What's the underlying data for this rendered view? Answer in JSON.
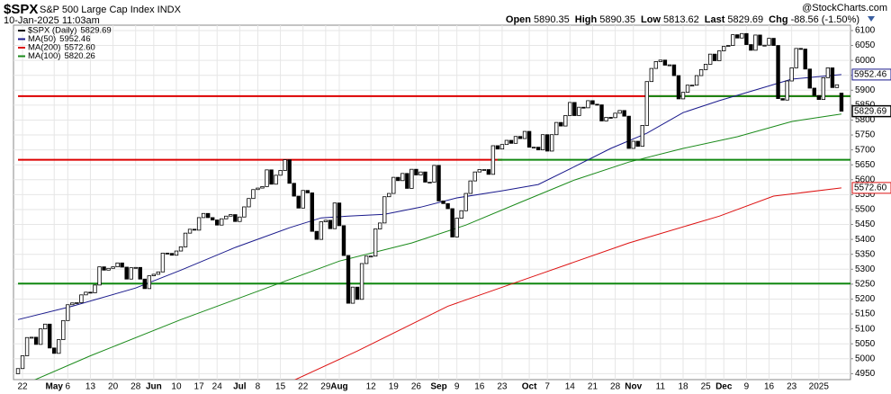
{
  "chart_data": {
    "type": "candlestick",
    "title": "$SPX",
    "subtitle": "S&P 500 Large Cap Index INDX",
    "date": "10-Jan-2025 11:03am",
    "credit": "@StockCharts.com",
    "quote": [
      {
        "label": "Open",
        "value": "5890.35"
      },
      {
        "label": "High",
        "value": "5890.35"
      },
      {
        "label": "Low",
        "value": "5813.62"
      },
      {
        "label": "Last",
        "value": "5829.69"
      },
      {
        "label": "Chg",
        "value": "-88.56 (-1.50%)"
      }
    ],
    "price": {
      "name": "$SPX (Daily)",
      "value_label": "5829.69",
      "color": "#000000",
      "open": [
        4950,
        4967,
        5010,
        5071,
        5072,
        5048,
        5100,
        5116,
        5036,
        5018,
        5064,
        5128,
        5181,
        5187,
        5188,
        5214,
        5223,
        5221,
        5247,
        5308,
        5297,
        5303,
        5308,
        5321,
        5307,
        5267,
        5305,
        5306,
        5267,
        5235,
        5278,
        5283,
        5291,
        5354,
        5353,
        5347,
        5361,
        5375,
        5421,
        5434,
        5431,
        5473,
        5487,
        5473,
        5465,
        5448,
        5469,
        5478,
        5483,
        5460,
        5475,
        5509,
        5537,
        5567,
        5572,
        5577,
        5633,
        5585,
        5615,
        5631,
        5667,
        5588,
        5545,
        5505,
        5564,
        5556,
        5427,
        5400,
        5459,
        5464,
        5436,
        5522,
        5446,
        5346,
        5186,
        5240,
        5199,
        5319,
        5344,
        5344,
        5435,
        5455,
        5543,
        5554,
        5608,
        5597,
        5621,
        5571,
        5635,
        5616,
        5626,
        5592,
        5592,
        5648,
        5529,
        5520,
        5503,
        5408,
        5471,
        5496,
        5554,
        5596,
        5626,
        5634,
        5634,
        5618,
        5714,
        5703,
        5718,
        5732,
        5722,
        5745,
        5738,
        5762,
        5709,
        5709,
        5700,
        5751,
        5696,
        5751,
        5792,
        5780,
        5815,
        5859,
        5815,
        5843,
        5841,
        5865,
        5853,
        5851,
        5797,
        5809,
        5808,
        5823,
        5832,
        5813,
        5705,
        5729,
        5712,
        5782,
        5929,
        5973,
        5996,
        6001,
        5984,
        5985,
        5949,
        5871,
        5893,
        5917,
        5917,
        5949,
        5969,
        5987,
        6021,
        5999,
        6032,
        6047,
        6050,
        6086,
        6075,
        6090,
        6053,
        6034,
        6085,
        6051,
        6051,
        6074,
        6050,
        5872,
        5867,
        5931,
        5975,
        6040,
        6038,
        5971,
        5907,
        5882,
        5869,
        5942,
        5975,
        5909,
        5890.35
      ],
      "close": [
        4967,
        5010,
        5071,
        5072,
        5048,
        5100,
        5116,
        5036,
        5018,
        5064,
        5128,
        5181,
        5187,
        5188,
        5214,
        5223,
        5221,
        5247,
        5308,
        5297,
        5303,
        5308,
        5321,
        5307,
        5267,
        5305,
        5306,
        5267,
        5235,
        5278,
        5283,
        5291,
        5354,
        5353,
        5347,
        5361,
        5375,
        5421,
        5434,
        5431,
        5473,
        5487,
        5473,
        5465,
        5448,
        5469,
        5478,
        5483,
        5460,
        5475,
        5509,
        5537,
        5567,
        5572,
        5577,
        5633,
        5585,
        5615,
        5631,
        5667,
        5588,
        5545,
        5505,
        5564,
        5556,
        5427,
        5400,
        5459,
        5464,
        5436,
        5522,
        5446,
        5346,
        5186,
        5240,
        5199,
        5319,
        5344,
        5344,
        5435,
        5455,
        5543,
        5554,
        5608,
        5597,
        5621,
        5571,
        5635,
        5616,
        5626,
        5592,
        5592,
        5648,
        5529,
        5520,
        5503,
        5408,
        5471,
        5496,
        5554,
        5596,
        5626,
        5634,
        5634,
        5618,
        5714,
        5703,
        5718,
        5732,
        5722,
        5745,
        5738,
        5762,
        5709,
        5709,
        5700,
        5751,
        5696,
        5751,
        5792,
        5780,
        5815,
        5859,
        5815,
        5843,
        5841,
        5865,
        5853,
        5851,
        5797,
        5809,
        5808,
        5823,
        5832,
        5813,
        5705,
        5729,
        5712,
        5782,
        5929,
        5973,
        5996,
        6001,
        5984,
        5985,
        5949,
        5871,
        5893,
        5917,
        5917,
        5949,
        5969,
        5987,
        6021,
        5999,
        6032,
        6047,
        6050,
        6086,
        6075,
        6090,
        6053,
        6034,
        6085,
        6051,
        6051,
        6074,
        6050,
        5872,
        5867,
        5931,
        5975,
        6040,
        6038,
        5971,
        5907,
        5882,
        5869,
        5942,
        5975,
        5909,
        5918.25,
        5829.69
      ]
    },
    "series": [
      {
        "name": "MA(50)",
        "value_label": "5952.46",
        "color": "#1a1a8c",
        "label_box": true,
        "x": [
          0,
          12,
          26,
          36,
          48,
          60,
          67,
          73,
          81,
          89,
          97,
          107,
          115,
          123,
          131,
          139,
          147,
          155,
          163,
          171,
          182
        ],
        "values": [
          5131,
          5176,
          5237,
          5297,
          5373,
          5439,
          5472,
          5478,
          5484,
          5508,
          5539,
          5563,
          5584,
          5644,
          5705,
          5756,
          5825,
          5865,
          5901,
          5937,
          5952.46
        ]
      },
      {
        "name": "MA(200)",
        "value_label": "5572.60",
        "color": "#dd1111",
        "label_box": true,
        "x": [
          57,
          75,
          95,
          115,
          135,
          155,
          167,
          182
        ],
        "values": [
          4900,
          5026,
          5176,
          5282,
          5388,
          5478,
          5545,
          5572.6
        ]
      },
      {
        "name": "MA(100)",
        "value_label": "5820.26",
        "color": "#1a8a1a",
        "label_box": false,
        "x": [
          0,
          16,
          36,
          56,
          71,
          87,
          99,
          111,
          123,
          135,
          147,
          159,
          171,
          182
        ],
        "values": [
          4905,
          5010,
          5131,
          5243,
          5327,
          5388,
          5448,
          5524,
          5599,
          5659,
          5705,
          5744,
          5795,
          5820.26
        ]
      }
    ],
    "levels": [
      {
        "value": 5880,
        "color": "#dd0000",
        "from": 0
      },
      {
        "value": 5880,
        "color": "#118811",
        "from": 139
      },
      {
        "value": 5667,
        "color": "#dd0000",
        "from": 0,
        "to": 107
      },
      {
        "value": 5667,
        "color": "#118811",
        "from": 106
      },
      {
        "value": 5252,
        "color": "#118811",
        "from": 0
      }
    ],
    "xlim": [
      -1,
      184
    ],
    "ylim": [
      4930,
      6118
    ],
    "yticks": [
      4950,
      5000,
      5050,
      5100,
      5150,
      5200,
      5250,
      5300,
      5350,
      5400,
      5450,
      5500,
      5550,
      5600,
      5650,
      5700,
      5750,
      5800,
      5850,
      5900,
      5950,
      6000,
      6050,
      6100
    ],
    "xticks": [
      {
        "value": 1,
        "label": "22"
      },
      {
        "value": 8,
        "label": "May"
      },
      {
        "value": 11,
        "label": "6"
      },
      {
        "value": 16,
        "label": "13"
      },
      {
        "value": 21,
        "label": "20"
      },
      {
        "value": 26,
        "label": "28"
      },
      {
        "value": 30,
        "label": "Jun"
      },
      {
        "value": 35,
        "label": "10"
      },
      {
        "value": 40,
        "label": "17"
      },
      {
        "value": 44,
        "label": "24"
      },
      {
        "value": 49,
        "label": "Jul"
      },
      {
        "value": 53,
        "label": "8"
      },
      {
        "value": 58,
        "label": "15"
      },
      {
        "value": 63,
        "label": "22"
      },
      {
        "value": 68,
        "label": "29"
      },
      {
        "value": 71,
        "label": "Aug"
      },
      {
        "value": 78,
        "label": "12"
      },
      {
        "value": 83,
        "label": "19"
      },
      {
        "value": 88,
        "label": "26"
      },
      {
        "value": 93,
        "label": "Sep"
      },
      {
        "value": 97,
        "label": "9"
      },
      {
        "value": 102,
        "label": "16"
      },
      {
        "value": 107,
        "label": "23"
      },
      {
        "value": 113,
        "label": "Oct"
      },
      {
        "value": 117,
        "label": "7"
      },
      {
        "value": 122,
        "label": "14"
      },
      {
        "value": 127,
        "label": "21"
      },
      {
        "value": 132,
        "label": "28"
      },
      {
        "value": 136,
        "label": "Nov"
      },
      {
        "value": 142,
        "label": "11"
      },
      {
        "value": 147,
        "label": "18"
      },
      {
        "value": 152,
        "label": "25"
      },
      {
        "value": 156,
        "label": "Dec"
      },
      {
        "value": 161,
        "label": "9"
      },
      {
        "value": 166,
        "label": "16"
      },
      {
        "value": 171,
        "label": "23"
      },
      {
        "value": 177,
        "label": "2025"
      }
    ],
    "grid": true
  }
}
